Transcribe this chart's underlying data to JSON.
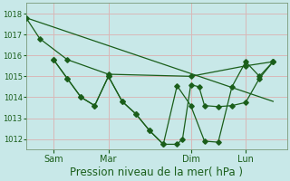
{
  "background_color": "#c8e8e8",
  "grid_color": "#d8b8b8",
  "line_color": "#1a5e1a",
  "xlabel": "Pression niveau de la mer( hPa )",
  "xlabel_fontsize": 8.5,
  "ylim": [
    1011.5,
    1018.5
  ],
  "yticks": [
    1012,
    1013,
    1014,
    1015,
    1016,
    1017,
    1018
  ],
  "xtick_labels": [
    "Sam",
    "Mar",
    "Dim",
    "Lun"
  ],
  "xtick_positions": [
    1,
    3,
    6,
    8
  ],
  "xlim": [
    0,
    9.5
  ],
  "series1_x": [
    0.0,
    0.5,
    1.5,
    3.0,
    6.0,
    8.0,
    9.0
  ],
  "series1_y": [
    1017.8,
    1016.8,
    1015.8,
    1015.1,
    1015.0,
    1015.5,
    1015.7
  ],
  "series2_x": [
    1.0,
    1.5,
    2.0,
    2.5,
    3.0,
    3.5,
    4.0,
    4.5,
    5.0,
    5.5,
    5.7,
    6.0,
    6.3,
    6.5,
    7.0,
    7.5,
    8.0,
    8.5,
    9.0
  ],
  "series2_y": [
    1015.8,
    1014.9,
    1014.0,
    1013.6,
    1015.0,
    1013.8,
    1013.2,
    1012.4,
    1011.75,
    1011.75,
    1012.0,
    1014.6,
    1014.5,
    1013.6,
    1013.55,
    1013.6,
    1013.75,
    1014.9,
    1015.7
  ],
  "series3_x": [
    1.0,
    1.5,
    2.0,
    2.5,
    3.0,
    3.5,
    4.0,
    4.5,
    5.0,
    5.5,
    6.0,
    6.5,
    7.0,
    7.5,
    8.0,
    8.5,
    9.0
  ],
  "series3_y": [
    1015.8,
    1014.9,
    1014.0,
    1013.6,
    1015.0,
    1013.8,
    1013.2,
    1012.4,
    1011.75,
    1014.55,
    1013.6,
    1011.9,
    1011.85,
    1014.5,
    1015.7,
    1015.0,
    1015.7
  ],
  "series4_x": [
    0.0,
    9.0
  ],
  "series4_y": [
    1017.8,
    1013.8
  ],
  "ytick_fontsize": 6.0,
  "xtick_fontsize": 7.0
}
